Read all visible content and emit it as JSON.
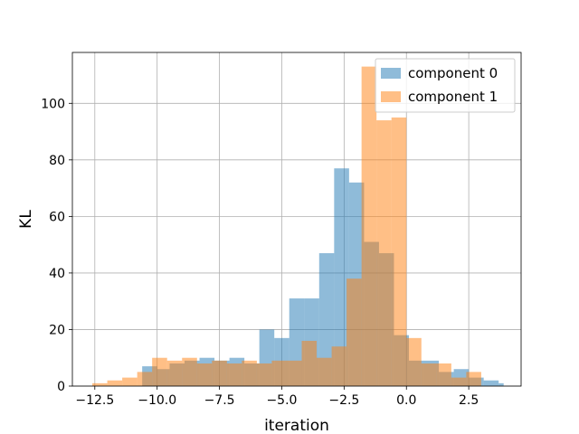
{
  "chart_data": {
    "type": "bar",
    "title": "",
    "xlabel": "iteration",
    "ylabel": "KL",
    "xlim": [
      -13.4,
      4.6
    ],
    "ylim": [
      0,
      118
    ],
    "grid": true,
    "legend_position": "top-right",
    "x_ticks": [
      -12.5,
      -10.0,
      -7.5,
      -5.0,
      -2.5,
      0.0,
      2.5
    ],
    "x_tick_labels": [
      "−12.5",
      "−10.0",
      "−7.5",
      "−5.0",
      "−2.5",
      "0.0",
      "2.5"
    ],
    "y_ticks": [
      0,
      20,
      40,
      60,
      80,
      100
    ],
    "y_tick_labels": [
      "0",
      "20",
      "40",
      "60",
      "80",
      "100"
    ],
    "series": [
      {
        "name": "component 0",
        "color": "#1f77b4",
        "bins": [
          {
            "x0": -10.6,
            "x1": -10.0,
            "count": 7
          },
          {
            "x0": -10.0,
            "x1": -9.5,
            "count": 6
          },
          {
            "x0": -9.5,
            "x1": -8.9,
            "count": 8
          },
          {
            "x0": -8.9,
            "x1": -8.3,
            "count": 9
          },
          {
            "x0": -8.3,
            "x1": -7.7,
            "count": 10
          },
          {
            "x0": -7.7,
            "x1": -7.1,
            "count": 9
          },
          {
            "x0": -7.1,
            "x1": -6.5,
            "count": 10
          },
          {
            "x0": -6.5,
            "x1": -5.9,
            "count": 8
          },
          {
            "x0": -5.9,
            "x1": -5.3,
            "count": 20
          },
          {
            "x0": -5.3,
            "x1": -4.7,
            "count": 17
          },
          {
            "x0": -4.7,
            "x1": -4.1,
            "count": 31
          },
          {
            "x0": -4.1,
            "x1": -3.5,
            "count": 31
          },
          {
            "x0": -3.5,
            "x1": -2.9,
            "count": 47
          },
          {
            "x0": -2.9,
            "x1": -2.3,
            "count": 77
          },
          {
            "x0": -2.3,
            "x1": -1.7,
            "count": 72
          },
          {
            "x0": -1.7,
            "x1": -1.1,
            "count": 51
          },
          {
            "x0": -1.1,
            "x1": -0.5,
            "count": 47
          },
          {
            "x0": -0.5,
            "x1": 0.1,
            "count": 18
          },
          {
            "x0": 0.1,
            "x1": 0.7,
            "count": 9
          },
          {
            "x0": 0.7,
            "x1": 1.3,
            "count": 9
          },
          {
            "x0": 1.3,
            "x1": 1.9,
            "count": 5
          },
          {
            "x0": 1.9,
            "x1": 2.5,
            "count": 6
          },
          {
            "x0": 2.5,
            "x1": 3.1,
            "count": 3
          },
          {
            "x0": 3.1,
            "x1": 3.7,
            "count": 2
          },
          {
            "x0": 3.7,
            "x1": 3.9,
            "count": 1
          }
        ]
      },
      {
        "name": "component 1",
        "color": "#ff7f0e",
        "bins": [
          {
            "x0": -12.6,
            "x1": -12.0,
            "count": 1
          },
          {
            "x0": -12.0,
            "x1": -11.4,
            "count": 2
          },
          {
            "x0": -11.4,
            "x1": -10.8,
            "count": 3
          },
          {
            "x0": -10.8,
            "x1": -10.2,
            "count": 5
          },
          {
            "x0": -10.2,
            "x1": -9.6,
            "count": 10
          },
          {
            "x0": -9.6,
            "x1": -9.0,
            "count": 9
          },
          {
            "x0": -9.0,
            "x1": -8.4,
            "count": 10
          },
          {
            "x0": -8.4,
            "x1": -7.8,
            "count": 8
          },
          {
            "x0": -7.8,
            "x1": -7.2,
            "count": 9
          },
          {
            "x0": -7.2,
            "x1": -6.6,
            "count": 8
          },
          {
            "x0": -6.6,
            "x1": -6.0,
            "count": 9
          },
          {
            "x0": -6.0,
            "x1": -5.4,
            "count": 8
          },
          {
            "x0": -5.4,
            "x1": -4.8,
            "count": 9
          },
          {
            "x0": -4.8,
            "x1": -4.2,
            "count": 9
          },
          {
            "x0": -4.2,
            "x1": -3.6,
            "count": 16
          },
          {
            "x0": -3.6,
            "x1": -3.0,
            "count": 10
          },
          {
            "x0": -3.0,
            "x1": -2.4,
            "count": 14
          },
          {
            "x0": -2.4,
            "x1": -1.8,
            "count": 38
          },
          {
            "x0": -1.8,
            "x1": -1.2,
            "count": 113
          },
          {
            "x0": -1.2,
            "x1": -0.6,
            "count": 94
          },
          {
            "x0": -0.6,
            "x1": 0.0,
            "count": 95
          },
          {
            "x0": 0.0,
            "x1": 0.6,
            "count": 17
          },
          {
            "x0": 0.6,
            "x1": 1.2,
            "count": 8
          },
          {
            "x0": 1.2,
            "x1": 1.8,
            "count": 8
          },
          {
            "x0": 1.8,
            "x1": 2.4,
            "count": 3
          },
          {
            "x0": 2.4,
            "x1": 3.0,
            "count": 5
          }
        ]
      }
    ]
  }
}
